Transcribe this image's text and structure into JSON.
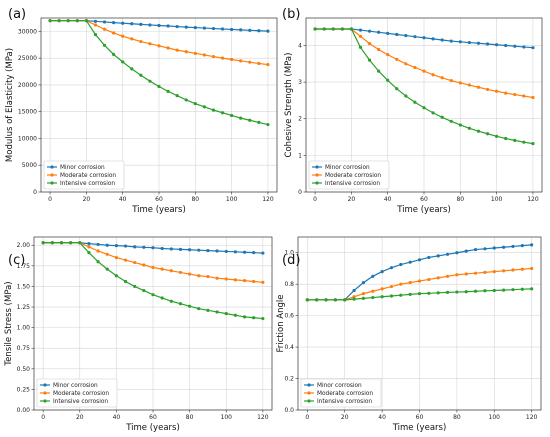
{
  "chart_data": [
    {
      "type": "line",
      "panel_label": "(a)",
      "xlabel": "Time (years)",
      "ylabel": "Modulus of Elasticity (MPa)",
      "xlim": [
        -5,
        125
      ],
      "ylim": [
        0,
        32500
      ],
      "xticks": [
        0,
        20,
        40,
        60,
        80,
        100,
        120
      ],
      "yticks": [
        0,
        5000,
        10000,
        15000,
        20000,
        25000,
        30000
      ],
      "ytick_labels": [
        "0",
        "5000",
        "10000",
        "15000",
        "20000",
        "25000",
        "30000"
      ],
      "grid": true,
      "legend_position": "lower-left",
      "x": [
        0,
        5,
        10,
        15,
        20,
        25,
        30,
        35,
        40,
        45,
        50,
        55,
        60,
        65,
        70,
        75,
        80,
        85,
        90,
        95,
        100,
        105,
        110,
        115,
        120
      ],
      "series": [
        {
          "name": "Minor corrosion",
          "color": "#1f77b4",
          "values": [
            32000,
            32000,
            32000,
            32000,
            32000,
            31880,
            31760,
            31640,
            31530,
            31420,
            31310,
            31200,
            31100,
            31000,
            30900,
            30800,
            30710,
            30620,
            30530,
            30440,
            30360,
            30280,
            30200,
            30120,
            30050
          ]
        },
        {
          "name": "Moderate corrosion",
          "color": "#ff7f0e",
          "values": [
            32000,
            32000,
            32000,
            32000,
            32000,
            31200,
            30400,
            29700,
            29100,
            28600,
            28100,
            27700,
            27300,
            26900,
            26500,
            26200,
            25900,
            25600,
            25300,
            25000,
            24750,
            24500,
            24250,
            24000,
            23800
          ]
        },
        {
          "name": "Intensive corrosion",
          "color": "#2ca02c",
          "values": [
            32000,
            32000,
            32000,
            32000,
            32000,
            29400,
            27400,
            25700,
            24300,
            23000,
            21800,
            20700,
            19700,
            18800,
            18000,
            17200,
            16500,
            15900,
            15300,
            14800,
            14300,
            13800,
            13400,
            13000,
            12600
          ]
        }
      ]
    },
    {
      "type": "line",
      "panel_label": "(b)",
      "xlabel": "Time (years)",
      "ylabel": "Cohesive Strength (MPa)",
      "xlim": [
        -5,
        125
      ],
      "ylim": [
        0,
        4.75
      ],
      "xticks": [
        0,
        20,
        40,
        60,
        80,
        100,
        120
      ],
      "yticks": [
        0,
        1,
        2,
        3,
        4
      ],
      "ytick_labels": [
        "0",
        "1",
        "2",
        "3",
        "4"
      ],
      "grid": true,
      "legend_position": "lower-left",
      "x": [
        0,
        5,
        10,
        15,
        20,
        25,
        30,
        35,
        40,
        45,
        50,
        55,
        60,
        65,
        70,
        75,
        80,
        85,
        90,
        95,
        100,
        105,
        110,
        115,
        120
      ],
      "series": [
        {
          "name": "Minor corrosion",
          "color": "#1f77b4",
          "values": [
            4.45,
            4.45,
            4.45,
            4.45,
            4.45,
            4.42,
            4.39,
            4.36,
            4.33,
            4.3,
            4.27,
            4.24,
            4.21,
            4.18,
            4.15,
            4.12,
            4.1,
            4.08,
            4.06,
            4.04,
            4.02,
            4.0,
            3.98,
            3.96,
            3.94
          ]
        },
        {
          "name": "Moderate corrosion",
          "color": "#ff7f0e",
          "values": [
            4.45,
            4.45,
            4.45,
            4.45,
            4.45,
            4.25,
            4.05,
            3.89,
            3.75,
            3.62,
            3.5,
            3.4,
            3.3,
            3.2,
            3.12,
            3.04,
            2.98,
            2.92,
            2.86,
            2.8,
            2.75,
            2.7,
            2.66,
            2.62,
            2.58
          ]
        },
        {
          "name": "Intensive corrosion",
          "color": "#2ca02c",
          "values": [
            4.45,
            4.45,
            4.45,
            4.45,
            4.45,
            3.95,
            3.6,
            3.3,
            3.05,
            2.82,
            2.62,
            2.45,
            2.3,
            2.16,
            2.04,
            1.93,
            1.83,
            1.74,
            1.66,
            1.59,
            1.52,
            1.46,
            1.41,
            1.36,
            1.32
          ]
        }
      ]
    },
    {
      "type": "line",
      "panel_label": "(c)",
      "xlabel": "Time (years)",
      "ylabel": "Tensile Stress (MPa)",
      "xlim": [
        -5,
        125
      ],
      "ylim": [
        0,
        2.1
      ],
      "xticks": [
        0,
        20,
        40,
        60,
        80,
        100,
        120
      ],
      "yticks": [
        0,
        0.25,
        0.5,
        0.75,
        1.0,
        1.25,
        1.5,
        1.75,
        2.0
      ],
      "ytick_labels": [
        "0.00",
        "0.25",
        "0.50",
        "0.75",
        "1.00",
        "1.25",
        "1.50",
        "1.75",
        "2.00"
      ],
      "grid": true,
      "legend_position": "lower-left",
      "x": [
        0,
        5,
        10,
        15,
        20,
        25,
        30,
        35,
        40,
        45,
        50,
        55,
        60,
        65,
        70,
        75,
        80,
        85,
        90,
        95,
        100,
        105,
        110,
        115,
        120
      ],
      "series": [
        {
          "name": "Minor corrosion",
          "color": "#1f77b4",
          "values": [
            2.03,
            2.03,
            2.03,
            2.03,
            2.03,
            2.02,
            2.01,
            2.0,
            1.995,
            1.99,
            1.98,
            1.975,
            1.97,
            1.96,
            1.955,
            1.95,
            1.945,
            1.94,
            1.935,
            1.93,
            1.925,
            1.92,
            1.915,
            1.91,
            1.905
          ]
        },
        {
          "name": "Moderate corrosion",
          "color": "#ff7f0e",
          "values": [
            2.03,
            2.03,
            2.03,
            2.03,
            2.03,
            1.98,
            1.93,
            1.89,
            1.85,
            1.82,
            1.79,
            1.76,
            1.73,
            1.71,
            1.69,
            1.67,
            1.65,
            1.63,
            1.62,
            1.6,
            1.59,
            1.58,
            1.57,
            1.56,
            1.55
          ]
        },
        {
          "name": "Intensive corrosion",
          "color": "#2ca02c",
          "values": [
            2.03,
            2.03,
            2.03,
            2.03,
            2.03,
            1.91,
            1.8,
            1.71,
            1.63,
            1.56,
            1.5,
            1.45,
            1.4,
            1.36,
            1.32,
            1.29,
            1.26,
            1.23,
            1.21,
            1.19,
            1.17,
            1.15,
            1.13,
            1.12,
            1.11
          ]
        }
      ]
    },
    {
      "type": "line",
      "panel_label": "(d)",
      "xlabel": "Time (years)",
      "ylabel": "Friction Angle",
      "xlim": [
        -5,
        125
      ],
      "ylim": [
        0,
        1.1
      ],
      "xticks": [
        0,
        20,
        40,
        60,
        80,
        100,
        120
      ],
      "yticks": [
        0,
        0.2,
        0.4,
        0.6,
        0.8,
        1.0
      ],
      "ytick_labels": [
        "0.0",
        "0.2",
        "0.4",
        "0.6",
        "0.8",
        "1.0"
      ],
      "grid": true,
      "legend_position": "lower-left",
      "x": [
        0,
        5,
        10,
        15,
        20,
        25,
        30,
        35,
        40,
        45,
        50,
        55,
        60,
        65,
        70,
        75,
        80,
        85,
        90,
        95,
        100,
        105,
        110,
        115,
        120
      ],
      "series": [
        {
          "name": "Minor corrosion",
          "color": "#1f77b4",
          "values": [
            0.7,
            0.7,
            0.7,
            0.7,
            0.7,
            0.76,
            0.81,
            0.85,
            0.88,
            0.905,
            0.925,
            0.94,
            0.955,
            0.97,
            0.98,
            0.99,
            1.0,
            1.01,
            1.02,
            1.025,
            1.03,
            1.035,
            1.04,
            1.045,
            1.05
          ]
        },
        {
          "name": "Moderate corrosion",
          "color": "#ff7f0e",
          "values": [
            0.7,
            0.7,
            0.7,
            0.7,
            0.7,
            0.72,
            0.74,
            0.755,
            0.77,
            0.785,
            0.8,
            0.81,
            0.82,
            0.83,
            0.84,
            0.85,
            0.86,
            0.865,
            0.87,
            0.875,
            0.88,
            0.885,
            0.89,
            0.895,
            0.9
          ]
        },
        {
          "name": "Intensive corrosion",
          "color": "#2ca02c",
          "values": [
            0.7,
            0.7,
            0.7,
            0.7,
            0.7,
            0.705,
            0.71,
            0.715,
            0.72,
            0.725,
            0.73,
            0.735,
            0.74,
            0.742,
            0.745,
            0.748,
            0.75,
            0.752,
            0.755,
            0.758,
            0.76,
            0.762,
            0.765,
            0.768,
            0.77
          ]
        }
      ]
    }
  ]
}
